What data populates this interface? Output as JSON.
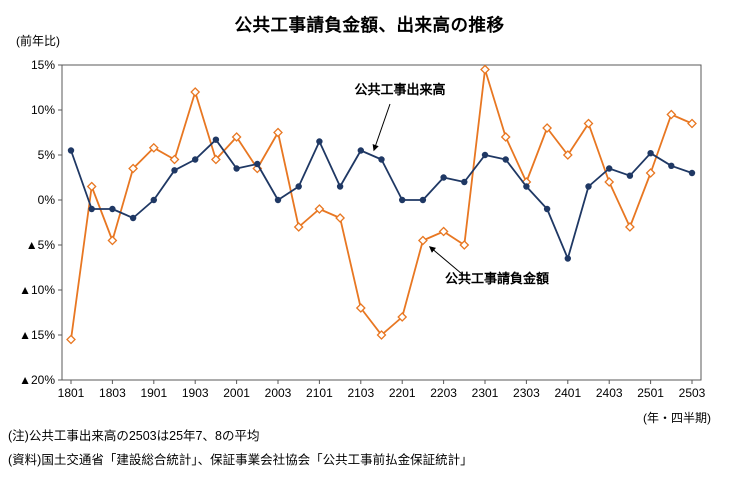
{
  "page": {
    "title": "公共工事請負金額、出来高の推移",
    "y_axis_unit": "(前年比)",
    "x_axis_unit": "(年・四半期)",
    "note": "(注)公共工事出来高の2503は25年7、8の平均",
    "source": "(資料)国土交通省「建設総合統計」、保証事業会社協会「公共工事前払金保証統計」"
  },
  "chart_data": {
    "type": "line",
    "title": "公共工事請負金額、出来高の推移",
    "y_unit": "(前年比)",
    "x_unit": "(年・四半期)",
    "ylim": [
      -20,
      15
    ],
    "grid": false,
    "legend_position": "inline-annotations",
    "y_ticks": [
      {
        "label": "15%",
        "value": 15
      },
      {
        "label": "10%",
        "value": 10
      },
      {
        "label": "5%",
        "value": 5
      },
      {
        "label": "0%",
        "value": 0
      },
      {
        "label": "▲5%",
        "value": -5
      },
      {
        "label": "▲10%",
        "value": -10
      },
      {
        "label": "▲15%",
        "value": -15
      },
      {
        "label": "▲20%",
        "value": -20
      }
    ],
    "categories": [
      "1801",
      "1802",
      "1803",
      "1804",
      "1901",
      "1902",
      "1903",
      "1904",
      "2001",
      "2002",
      "2003",
      "2004",
      "2101",
      "2102",
      "2103",
      "2104",
      "2201",
      "2202",
      "2203",
      "2204",
      "2301",
      "2302",
      "2303",
      "2304",
      "2401",
      "2402",
      "2403",
      "2404",
      "2501",
      "2502",
      "2503"
    ],
    "x_tick_every": 2,
    "x_tick_labels": [
      "1801",
      "1803",
      "1901",
      "1903",
      "2001",
      "2003",
      "2101",
      "2103",
      "2201",
      "2203",
      "2301",
      "2303",
      "2401",
      "2403",
      "2501",
      "2503"
    ],
    "series": [
      {
        "name": "公共工事出来高",
        "marker": "circle",
        "color": "#1F3864",
        "values": [
          5.5,
          -1,
          -1,
          -2,
          0,
          3.3,
          4.5,
          6.7,
          3.5,
          4,
          0,
          1.5,
          6.5,
          1.5,
          5.5,
          4.5,
          0,
          0,
          2.5,
          2,
          5,
          4.5,
          1.5,
          -1,
          -6.5,
          1.5,
          3.5,
          2.7,
          5.2,
          3.8,
          3
        ]
      },
      {
        "name": "公共工事請負金額",
        "marker": "diamond-open",
        "color": "#E87722",
        "values": [
          -15.5,
          1.5,
          -4.5,
          3.5,
          5.8,
          4.5,
          12,
          4.5,
          7,
          3.5,
          7.5,
          -3,
          -1,
          -2,
          -12,
          -15,
          -13,
          -4.5,
          -3.5,
          -5,
          14.5,
          7,
          2,
          8,
          5,
          8.5,
          2,
          -3,
          3,
          9.5,
          8.5
        ]
      }
    ],
    "annotations": [
      {
        "text": "公共工事出来高",
        "series": 0
      },
      {
        "text": "公共工事請負金額",
        "series": 1
      }
    ]
  }
}
